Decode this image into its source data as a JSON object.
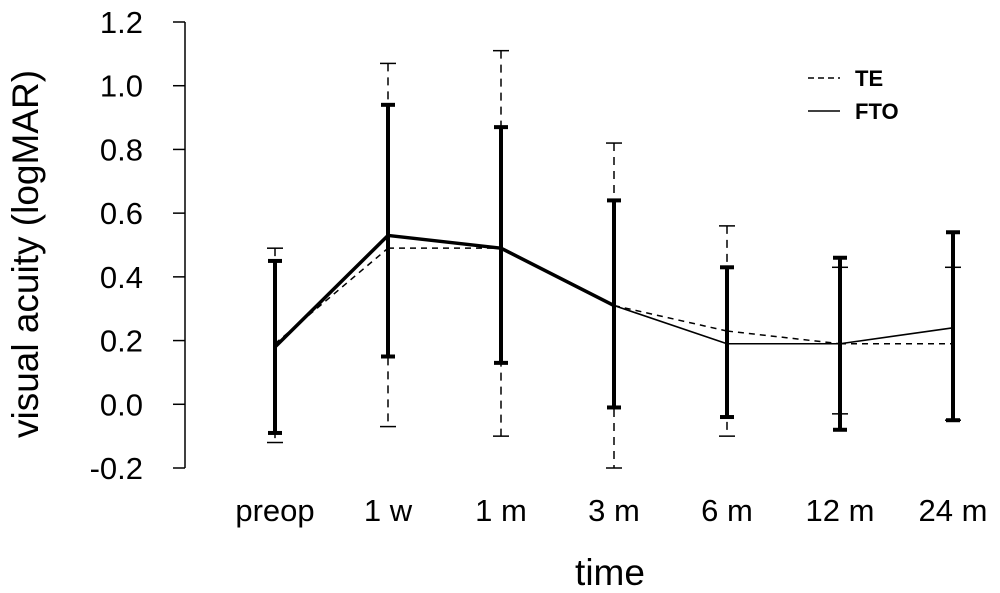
{
  "chart_data": {
    "type": "line",
    "xlabel": "time",
    "ylabel": "visual acuity (logMAR)",
    "ylim": [
      -0.2,
      1.2
    ],
    "y_ticks": [
      "1.2",
      "1.0",
      "0.8",
      "0.6",
      "0.4",
      "0.2",
      "0.0",
      "-0.2"
    ],
    "categories": [
      "preop",
      "1 w",
      "1 m",
      "3 m",
      "6 m",
      "12 m",
      "24 m"
    ],
    "grid": false,
    "legend_position": "top-right",
    "error_bars": true,
    "series": [
      {
        "name": "TE",
        "dashed": true,
        "color": "#000000",
        "values": [
          0.19,
          0.49,
          0.49,
          0.31,
          0.23,
          0.19,
          0.19
        ],
        "error_upper": [
          0.49,
          1.07,
          1.11,
          0.82,
          0.56,
          0.43,
          0.43
        ],
        "error_lower": [
          -0.12,
          -0.07,
          -0.1,
          -0.2,
          -0.1,
          -0.03,
          -0.05
        ]
      },
      {
        "name": "FTO",
        "dashed": false,
        "color": "#000000",
        "values": [
          0.18,
          0.53,
          0.49,
          0.31,
          0.19,
          0.19,
          0.24
        ],
        "error_upper": [
          0.45,
          0.94,
          0.87,
          0.64,
          0.43,
          0.46,
          0.54
        ],
        "error_lower": [
          -0.09,
          0.15,
          0.13,
          -0.01,
          -0.04,
          -0.08,
          -0.05
        ]
      }
    ]
  }
}
